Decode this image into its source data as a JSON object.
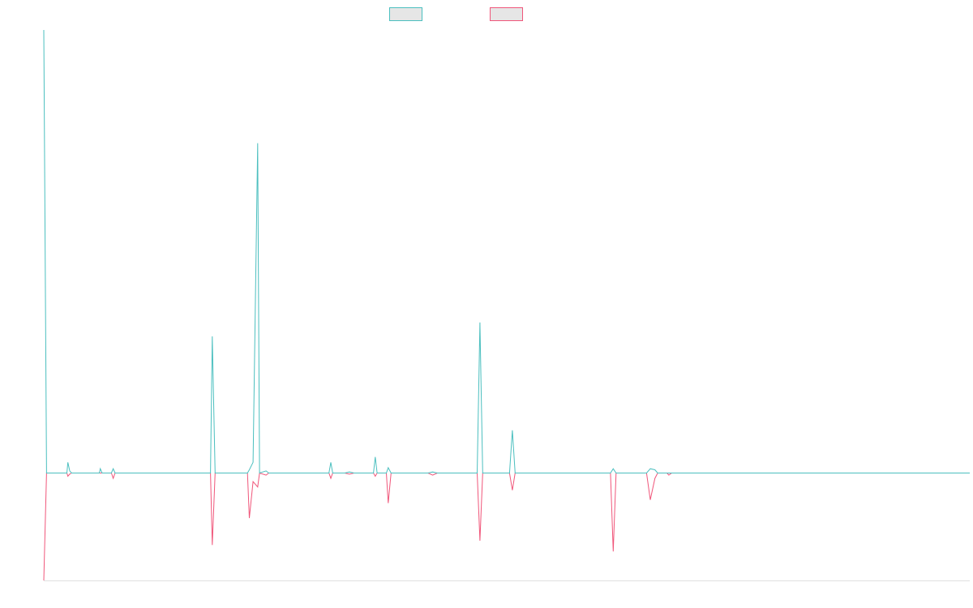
{
  "colors": {
    "series_a": "#4bbfbf",
    "series_b": "#f0567a",
    "legend_fill": "#e6e6e6",
    "axis": "#e0e0e0"
  },
  "chart_data": {
    "type": "line",
    "title": "",
    "xlabel": "",
    "ylabel": "",
    "x_range": [
      0,
      100
    ],
    "y_range": [
      -100,
      415
    ],
    "grid": false,
    "legend_placement": "top-center",
    "series": [
      {
        "values": [
          [
            0.0,
            415
          ],
          [
            0.3,
            0
          ],
          [
            2.5,
            0
          ],
          [
            2.6,
            10
          ],
          [
            2.8,
            2
          ],
          [
            3.0,
            0
          ],
          [
            6.0,
            0
          ],
          [
            6.1,
            4
          ],
          [
            6.3,
            0
          ],
          [
            7.3,
            0
          ],
          [
            7.5,
            4
          ],
          [
            7.7,
            0
          ],
          [
            18.0,
            0
          ],
          [
            18.2,
            128
          ],
          [
            18.5,
            0
          ],
          [
            22.0,
            0
          ],
          [
            22.2,
            3
          ],
          [
            22.6,
            10
          ],
          [
            23.1,
            309
          ],
          [
            23.3,
            0
          ],
          [
            24.0,
            2
          ],
          [
            24.3,
            0
          ],
          [
            30.8,
            0
          ],
          [
            31.0,
            10
          ],
          [
            31.2,
            0
          ],
          [
            32.5,
            0
          ],
          [
            33.0,
            1
          ],
          [
            33.5,
            0
          ],
          [
            35.6,
            0
          ],
          [
            35.8,
            15
          ],
          [
            36.0,
            0
          ],
          [
            37.0,
            0
          ],
          [
            37.2,
            5
          ],
          [
            37.5,
            0
          ],
          [
            41.5,
            0
          ],
          [
            42.0,
            1
          ],
          [
            42.5,
            0
          ],
          [
            46.8,
            0
          ],
          [
            47.1,
            141
          ],
          [
            47.4,
            0
          ],
          [
            50.3,
            0
          ],
          [
            50.6,
            40
          ],
          [
            50.9,
            0
          ],
          [
            61.2,
            0
          ],
          [
            61.5,
            4
          ],
          [
            61.8,
            0
          ],
          [
            65.1,
            0
          ],
          [
            65.5,
            4
          ],
          [
            66.0,
            3
          ],
          [
            66.3,
            0
          ],
          [
            67.3,
            0
          ],
          [
            67.5,
            0
          ],
          [
            100.0,
            0
          ]
        ]
      },
      {
        "values": [
          [
            0.0,
            -100
          ],
          [
            0.3,
            0
          ],
          [
            2.5,
            0
          ],
          [
            2.6,
            -3
          ],
          [
            2.8,
            -1
          ],
          [
            3.0,
            0
          ],
          [
            7.3,
            0
          ],
          [
            7.5,
            -5
          ],
          [
            7.7,
            0
          ],
          [
            18.0,
            0
          ],
          [
            18.2,
            -67
          ],
          [
            18.5,
            0
          ],
          [
            22.0,
            0
          ],
          [
            22.2,
            -42
          ],
          [
            22.6,
            -8
          ],
          [
            23.1,
            -13
          ],
          [
            23.3,
            0
          ],
          [
            24.0,
            -2
          ],
          [
            24.3,
            0
          ],
          [
            30.8,
            0
          ],
          [
            31.0,
            -5
          ],
          [
            31.2,
            0
          ],
          [
            32.5,
            0
          ],
          [
            33.0,
            -1
          ],
          [
            33.5,
            0
          ],
          [
            35.6,
            0
          ],
          [
            35.8,
            -3
          ],
          [
            36.0,
            0
          ],
          [
            37.0,
            0
          ],
          [
            37.2,
            -28
          ],
          [
            37.5,
            0
          ],
          [
            41.5,
            0
          ],
          [
            42.0,
            -2
          ],
          [
            42.5,
            0
          ],
          [
            46.8,
            0
          ],
          [
            47.1,
            -63
          ],
          [
            47.4,
            0
          ],
          [
            50.3,
            0
          ],
          [
            50.6,
            -16
          ],
          [
            50.9,
            0
          ],
          [
            61.2,
            0
          ],
          [
            61.5,
            -73
          ],
          [
            61.8,
            0
          ],
          [
            65.1,
            0
          ],
          [
            65.5,
            -25
          ],
          [
            66.0,
            -5
          ],
          [
            66.3,
            0
          ],
          [
            67.3,
            0
          ],
          [
            67.5,
            -2
          ],
          [
            67.8,
            0
          ],
          [
            100.0,
            0
          ]
        ]
      }
    ]
  }
}
